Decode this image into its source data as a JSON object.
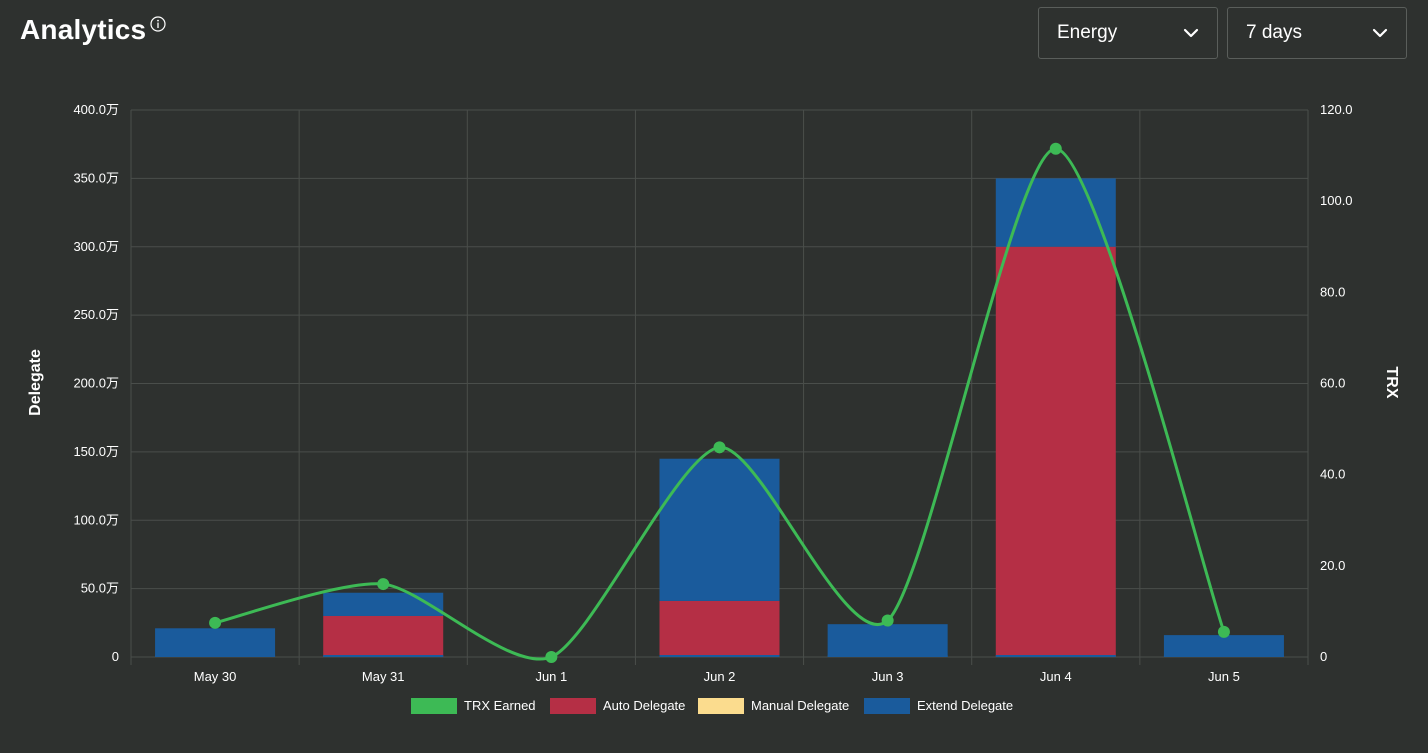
{
  "header": {
    "title": "Analytics",
    "resource_select": {
      "value": "Energy"
    },
    "range_select": {
      "value": "7 days"
    }
  },
  "colors": {
    "trx": "#3dba55",
    "auto": "#b52f45",
    "manual": "#fbdc8e",
    "extend": "#1a5b9c",
    "grid": "#4a4e4b"
  },
  "chart_data": {
    "type": "bar",
    "stacked": true,
    "categories": [
      "May 30",
      "May 31",
      "Jun 1",
      "Jun 2",
      "Jun 3",
      "Jun 4",
      "Jun 5"
    ],
    "y_left": {
      "label": "Delegate",
      "range": [
        0,
        4000000
      ],
      "ticks": [
        0,
        500000,
        1000000,
        1500000,
        2000000,
        2500000,
        3000000,
        3500000,
        4000000
      ],
      "tick_labels": [
        "0",
        "50.0万",
        "100.0万",
        "150.0万",
        "200.0万",
        "250.0万",
        "300.0万",
        "350.0万",
        "400.0万"
      ]
    },
    "y_right": {
      "label": "TRX",
      "range": [
        0,
        120
      ],
      "ticks": [
        0,
        20,
        40,
        60,
        80,
        100,
        120
      ],
      "tick_labels": [
        "0",
        "20.0",
        "40.0",
        "60.0",
        "80.0",
        "100.0",
        "120.0"
      ]
    },
    "series": [
      {
        "name": "TRX Earned",
        "type": "line",
        "axis": "right",
        "values": [
          7.5,
          16,
          0,
          46,
          8,
          111.5,
          5.5
        ]
      },
      {
        "name": "Auto Delegate",
        "type": "bar",
        "axis": "left",
        "values": [
          0,
          300000,
          0,
          410000,
          0,
          3000000,
          0
        ]
      },
      {
        "name": "Manual Delegate",
        "type": "bar",
        "axis": "left",
        "values": [
          0,
          0,
          0,
          0,
          0,
          0,
          0
        ]
      },
      {
        "name": "Extend Delegate",
        "type": "bar",
        "axis": "left",
        "values": [
          210000,
          170000,
          0,
          1040000,
          240000,
          500000,
          160000
        ]
      }
    ],
    "grid": true,
    "legend_position": "bottom-center"
  }
}
